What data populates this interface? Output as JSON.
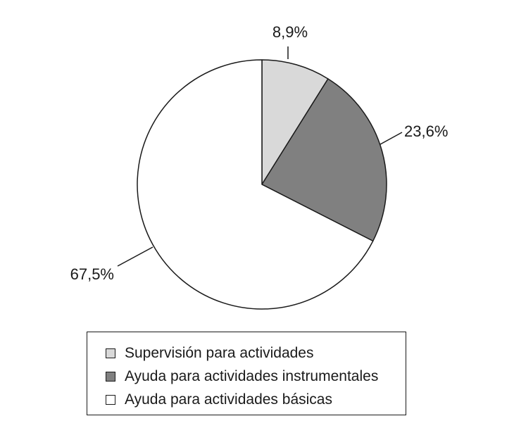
{
  "chart_data": {
    "type": "pie",
    "slices": [
      {
        "label": "Supervisión para actividades",
        "value": 8.9,
        "value_label": "8,9%",
        "color": "#d9d9d9"
      },
      {
        "label": "Ayuda para actividades instrumentales",
        "value": 23.6,
        "value_label": "23,6%",
        "color": "#808080"
      },
      {
        "label": "Ayuda para actividades básicas",
        "value": 67.5,
        "value_label": "67,5%",
        "color": "#ffffff"
      }
    ],
    "start_angle": "12 o'clock",
    "direction": "clockwise",
    "stroke_color": "#1a1a1a",
    "legend_position": "bottom"
  }
}
